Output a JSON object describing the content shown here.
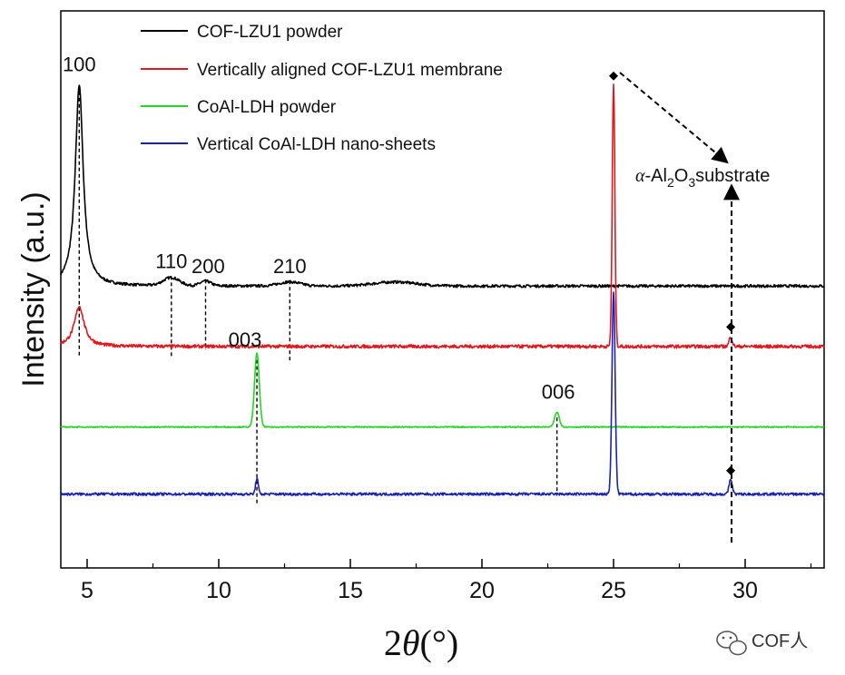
{
  "chart_data": {
    "type": "line",
    "title": "",
    "xlabel_prefix": "2",
    "xlabel_symbol": "θ",
    "xlabel_unit": "(°)",
    "ylabel": "Intensity (a.u.)",
    "xlim": [
      4,
      33
    ],
    "xticks": [
      5,
      10,
      15,
      20,
      25,
      30
    ],
    "xtick_labels": [
      "5",
      "10",
      "15",
      "20",
      "25",
      "30"
    ],
    "yticks_shown": false,
    "legend_position": "top-left",
    "series": [
      {
        "name": "COF-LZU1 powder",
        "color": "#000000",
        "baseline": 4.2,
        "noise": 0.02,
        "peaks": [
          {
            "x": 4.7,
            "height": 3.0,
            "width": 0.18,
            "shape": "lorentz"
          },
          {
            "x": 8.2,
            "height": 0.12,
            "width": 0.3
          },
          {
            "x": 9.5,
            "height": 0.07,
            "width": 0.2
          },
          {
            "x": 12.7,
            "height": 0.06,
            "width": 0.4
          },
          {
            "x": 16.7,
            "height": 0.06,
            "width": 0.8
          }
        ]
      },
      {
        "name": "Vertically aligned COF-LZU1 membrane",
        "color": "#e0191e",
        "baseline": 3.3,
        "noise": 0.025,
        "peaks": [
          {
            "x": 4.7,
            "height": 0.6,
            "width": 0.22,
            "shape": "lorentz"
          },
          {
            "x": 25.0,
            "height": 3.9,
            "width": 0.05
          },
          {
            "x": 29.45,
            "height": 0.14,
            "width": 0.06
          }
        ]
      },
      {
        "name": "CoAl-LDH powder",
        "color": "#22d822",
        "baseline": 2.1,
        "noise": 0.008,
        "peaks": [
          {
            "x": 11.45,
            "height": 1.1,
            "width": 0.09
          },
          {
            "x": 22.85,
            "height": 0.22,
            "width": 0.09
          }
        ]
      },
      {
        "name": "Vertical CoAl-LDH nano-sheets",
        "color": "#1a22b0",
        "baseline": 1.1,
        "noise": 0.02,
        "peaks": [
          {
            "x": 11.45,
            "height": 0.24,
            "width": 0.05
          },
          {
            "x": 25.0,
            "height": 3.0,
            "width": 0.06
          },
          {
            "x": 29.45,
            "height": 0.22,
            "width": 0.06
          }
        ]
      }
    ],
    "peak_labels": [
      {
        "text": "100",
        "x": 4.7
      },
      {
        "text": "110",
        "x": 8.2
      },
      {
        "text": "200",
        "x": 9.5
      },
      {
        "text": "210",
        "x": 12.7
      },
      {
        "text": "003",
        "x": 11.45
      },
      {
        "text": "006",
        "x": 22.85
      }
    ],
    "annotation": {
      "alpha": "α",
      "dash": "-",
      "al": "Al",
      "sub_2": "2",
      "o": "O",
      "sub_3": "3",
      "rest": "substrate",
      "marker_positions_x": [
        25.0,
        29.45
      ]
    }
  },
  "watermark": {
    "icon": "wechat-icon",
    "text": "COF人"
  }
}
